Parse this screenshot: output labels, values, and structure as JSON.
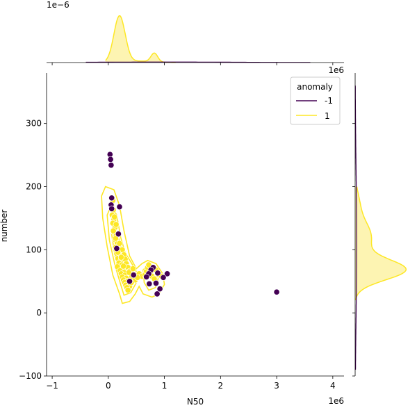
{
  "chart_data": {
    "type": "scatter",
    "xlabel": "N50",
    "ylabel": "number",
    "x_offset_text": "1e6",
    "x_ticks": [
      -1,
      0,
      1,
      2,
      3,
      4
    ],
    "x_tick_labels": [
      "−1",
      "0",
      "1",
      "2",
      "3",
      "4"
    ],
    "y_ticks": [
      -100,
      0,
      100,
      200,
      300
    ],
    "y_tick_labels": [
      "−100",
      "0",
      "100",
      "200",
      "300"
    ],
    "xlim": [
      -1.1,
      4.2
    ],
    "ylim": [
      -100,
      380
    ],
    "legend": {
      "title": "anomaly",
      "placement": "top-right",
      "entries": [
        {
          "label": "-1",
          "color": "#440154"
        },
        {
          "label": "1",
          "color": "#fde725"
        }
      ]
    },
    "top_marginal": {
      "offset_text": "1e−6",
      "ylim": [
        0,
        1.8
      ]
    },
    "right_marginal": {
      "offset_text": "1e6"
    },
    "colors": {
      "anomaly_neg1": "#440154",
      "anomaly_pos1": "#fde725",
      "kde_fill": "#fdf4b2"
    },
    "series": [
      {
        "name": "-1",
        "points": [
          [
            0.03,
            251
          ],
          [
            0.04,
            243
          ],
          [
            0.05,
            234
          ],
          [
            0.06,
            182
          ],
          [
            0.05,
            171
          ],
          [
            0.06,
            165
          ],
          [
            0.2,
            168
          ],
          [
            0.18,
            125
          ],
          [
            0.15,
            102
          ],
          [
            0.45,
            60
          ],
          [
            0.38,
            50
          ],
          [
            0.8,
            72
          ],
          [
            0.76,
            68
          ],
          [
            0.72,
            62
          ],
          [
            0.68,
            57
          ],
          [
            0.88,
            63
          ],
          [
            1.05,
            62
          ],
          [
            0.98,
            56
          ],
          [
            0.73,
            46
          ],
          [
            0.85,
            47
          ],
          [
            0.92,
            38
          ],
          [
            0.87,
            30
          ],
          [
            3.0,
            33
          ]
        ]
      },
      {
        "name": "1",
        "points": [
          [
            0.08,
            178
          ],
          [
            0.06,
            170
          ],
          [
            0.09,
            163
          ],
          [
            0.07,
            155
          ],
          [
            0.1,
            148
          ],
          [
            0.08,
            142
          ],
          [
            0.12,
            135
          ],
          [
            0.1,
            128
          ],
          [
            0.14,
            122
          ],
          [
            0.12,
            116
          ],
          [
            0.16,
            110
          ],
          [
            0.13,
            104
          ],
          [
            0.18,
            98
          ],
          [
            0.15,
            94
          ],
          [
            0.2,
            90
          ],
          [
            0.17,
            86
          ],
          [
            0.22,
            82
          ],
          [
            0.19,
            79
          ],
          [
            0.24,
            76
          ],
          [
            0.16,
            73
          ],
          [
            0.26,
            70
          ],
          [
            0.21,
            67
          ],
          [
            0.28,
            64
          ],
          [
            0.23,
            62
          ],
          [
            0.3,
            60
          ],
          [
            0.25,
            57
          ],
          [
            0.32,
            55
          ],
          [
            0.27,
            52
          ],
          [
            0.34,
            50
          ],
          [
            0.29,
            48
          ],
          [
            0.36,
            46
          ],
          [
            0.31,
            44
          ],
          [
            0.38,
            42
          ],
          [
            0.33,
            40
          ],
          [
            0.35,
            36
          ],
          [
            0.2,
            110
          ],
          [
            0.25,
            100
          ],
          [
            0.28,
            92
          ],
          [
            0.3,
            85
          ],
          [
            0.32,
            78
          ],
          [
            0.35,
            72
          ],
          [
            0.38,
            66
          ],
          [
            0.4,
            62
          ],
          [
            0.42,
            58
          ],
          [
            0.45,
            55
          ],
          [
            0.48,
            52
          ],
          [
            0.5,
            60
          ],
          [
            0.55,
            62
          ],
          [
            0.6,
            58
          ],
          [
            0.65,
            60
          ],
          [
            0.68,
            66
          ],
          [
            0.7,
            72
          ],
          [
            0.72,
            76
          ],
          [
            0.75,
            64
          ],
          [
            0.78,
            58
          ],
          [
            0.82,
            54
          ],
          [
            0.85,
            68
          ],
          [
            0.9,
            60
          ],
          [
            0.95,
            58
          ],
          [
            0.11,
            152
          ],
          [
            0.14,
            140
          ],
          [
            0.09,
            130
          ],
          [
            0.13,
            118
          ],
          [
            0.17,
            96
          ],
          [
            0.23,
            88
          ],
          [
            0.27,
            74
          ],
          [
            0.37,
            64
          ],
          [
            0.41,
            48
          ],
          [
            0.44,
            70
          ],
          [
            0.52,
            56
          ]
        ]
      }
    ]
  }
}
